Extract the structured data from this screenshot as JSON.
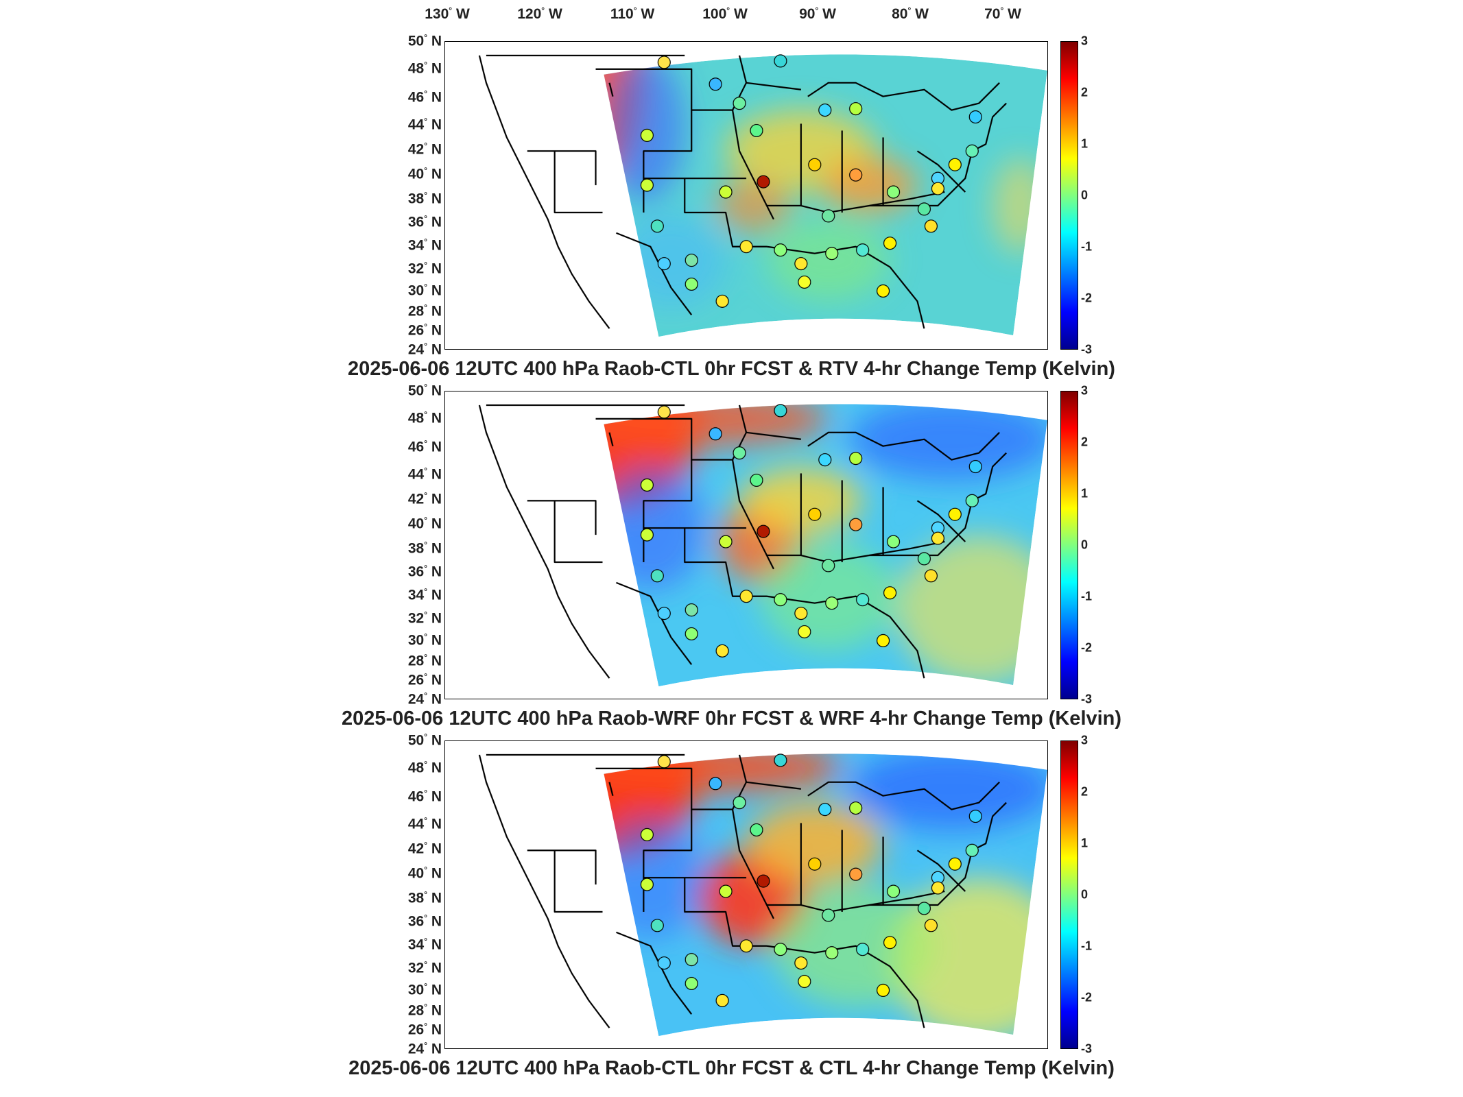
{
  "lon_ticks": [
    {
      "label": "130",
      "unit": "W"
    },
    {
      "label": "120",
      "unit": "W"
    },
    {
      "label": "110",
      "unit": "W"
    },
    {
      "label": "100",
      "unit": "W"
    },
    {
      "label": "90",
      "unit": "W"
    },
    {
      "label": "80",
      "unit": "W"
    },
    {
      "label": "70",
      "unit": "W"
    }
  ],
  "lat_ticks": [
    {
      "label": "50",
      "unit": "N"
    },
    {
      "label": "48",
      "unit": "N"
    },
    {
      "label": "46",
      "unit": "N"
    },
    {
      "label": "44",
      "unit": "N"
    },
    {
      "label": "42",
      "unit": "N"
    },
    {
      "label": "40",
      "unit": "N"
    },
    {
      "label": "38",
      "unit": "N"
    },
    {
      "label": "36",
      "unit": "N"
    },
    {
      "label": "34",
      "unit": "N"
    },
    {
      "label": "32",
      "unit": "N"
    },
    {
      "label": "30",
      "unit": "N"
    },
    {
      "label": "28",
      "unit": "N"
    },
    {
      "label": "26",
      "unit": "N"
    },
    {
      "label": "24",
      "unit": "N"
    }
  ],
  "colorbar": {
    "ticks": [
      "3",
      "2",
      "1",
      "0",
      "-1",
      "-2",
      "-3"
    ],
    "min": -3,
    "max": 3,
    "colors": [
      "#00008f",
      "#0000ff",
      "#0080ff",
      "#00ffff",
      "#80ff80",
      "#ffff00",
      "#ff8000",
      "#ff0000",
      "#800000"
    ]
  },
  "panels": [
    {
      "title": "2025-06-06 12UTC 400 hPa Raob-CTL 0hr FCST & RTV 4-hr Change Temp (Kelvin)"
    },
    {
      "title": "2025-06-06 12UTC 400 hPa Raob-WRF 0hr FCST & WRF 4-hr Change Temp (Kelvin)"
    },
    {
      "title": "2025-06-06 12UTC 400 hPa Raob-CTL 0hr FCST & CTL 4-hr Change Temp (Kelvin)"
    }
  ]
}
